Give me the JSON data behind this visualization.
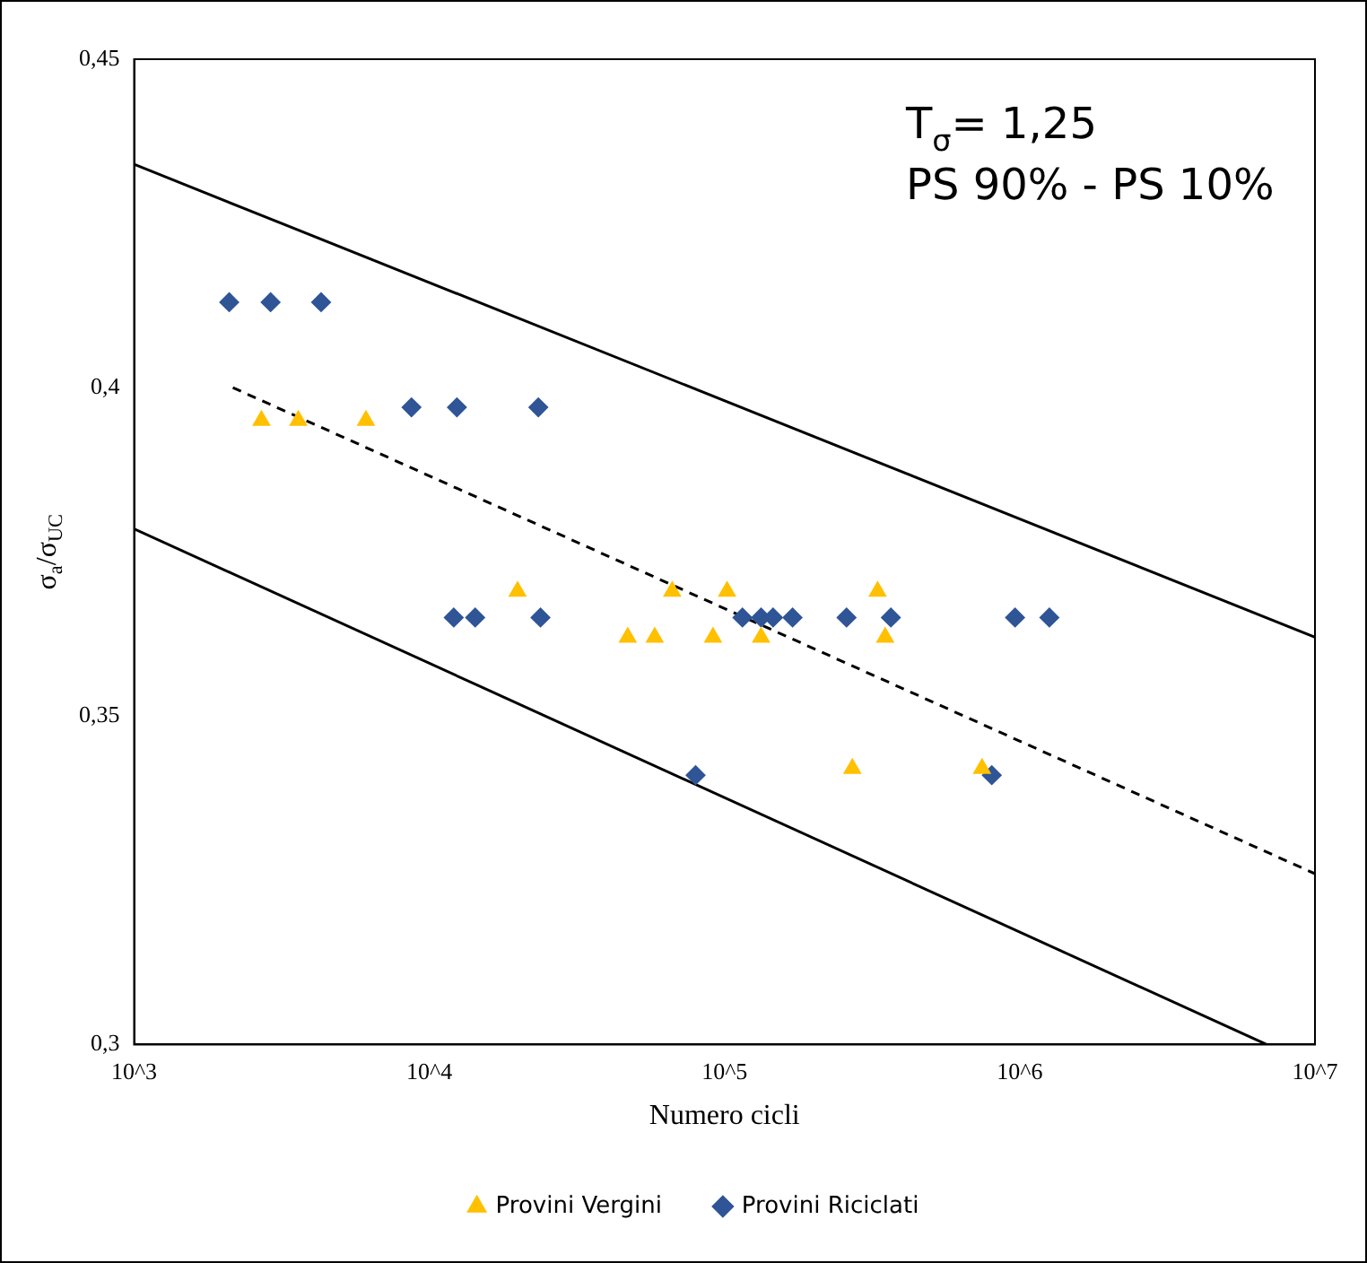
{
  "chart_data": {
    "type": "scatter",
    "xlabel": "Numero cicli",
    "ylabel": "σ$_{a}$/σ$_{UC}$",
    "annotations": [
      "T$_{σ}$= 1,25",
      "PS 90% - PS 10%"
    ],
    "log": "x",
    "grid": false,
    "legend": "bottom",
    "xlim": [
      1000,
      10000000
    ],
    "xticks": [
      {
        "value": 1000,
        "label": "10^3"
      },
      {
        "value": 10000,
        "label": "10^4"
      },
      {
        "value": 100000,
        "label": "10^5"
      },
      {
        "value": 1000000,
        "label": "10^6"
      },
      {
        "value": 10000000,
        "label": "10^7"
      }
    ],
    "ylim": [
      0.3,
      0.45
    ],
    "yticks": [
      {
        "value": 0.3,
        "label": "0,3"
      },
      {
        "value": 0.35,
        "label": "0,35"
      },
      {
        "value": 0.4,
        "label": "0,4"
      },
      {
        "value": 0.45,
        "label": "0,45"
      }
    ],
    "series": [
      {
        "name": "Provini Vergini",
        "color": "#ffc000",
        "marker": "triangle",
        "x": [
          2700,
          3600,
          6100,
          19900,
          66500,
          102000,
          330000,
          47000,
          58000,
          91400,
          133000,
          350000,
          271000,
          745000
        ],
        "values": [
          0.395,
          0.395,
          0.395,
          0.369,
          0.369,
          0.369,
          0.369,
          0.362,
          0.362,
          0.362,
          0.362,
          0.362,
          0.342,
          0.342
        ]
      },
      {
        "name": "Provini Riciclati",
        "color": "#2f5597",
        "marker": "diamond",
        "x": [
          2100,
          2900,
          4300,
          8700,
          12400,
          23400,
          12100,
          14300,
          23800,
          115000,
          133000,
          146000,
          170000,
          259000,
          366000,
          964000,
          1260000,
          79800,
          804000
        ],
        "values": [
          0.413,
          0.413,
          0.413,
          0.397,
          0.397,
          0.397,
          0.365,
          0.365,
          0.365,
          0.365,
          0.365,
          0.365,
          0.365,
          0.365,
          0.365,
          0.365,
          0.365,
          0.341,
          0.341
        ]
      },
      {
        "type": "line",
        "color": "#000000",
        "line_style": "solid",
        "marker": "none",
        "x": [
          1000,
          10000000
        ],
        "values": [
          0.434,
          0.362
        ]
      },
      {
        "type": "line",
        "color": "#000000",
        "line_style": "solid",
        "marker": "none",
        "x": [
          1000,
          6860000
        ],
        "values": [
          0.3785,
          0.3
        ]
      },
      {
        "type": "line",
        "color": "#000000",
        "line_style": "dashed",
        "marker": "none",
        "x": [
          2160,
          10000000
        ],
        "values": [
          0.4,
          0.326
        ]
      }
    ]
  }
}
